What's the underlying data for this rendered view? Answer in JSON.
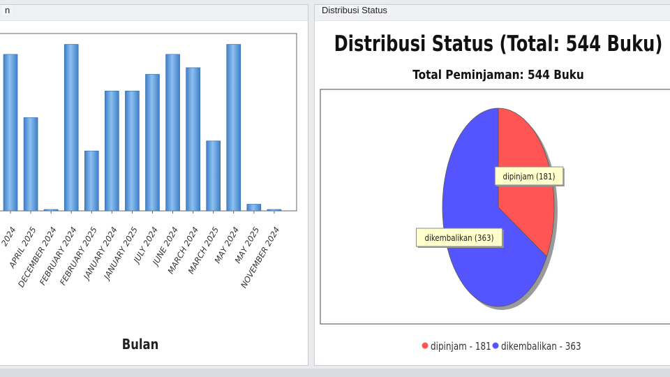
{
  "left_panel": {
    "title": "n"
  },
  "right_panel": {
    "title": "Distribusi Status"
  },
  "chart_data": [
    {
      "type": "bar",
      "title": "",
      "xlabel": "Bulan",
      "ylabel": "",
      "categories": [
        "2024",
        "APRIL 2025",
        "DECEMBER 2024",
        "FEBRUARY 2024",
        "FEBRUARY 2025",
        "JANUARY 2024",
        "JANUARY 2025",
        "JULY 2024",
        "JUNE 2024",
        "MARCH 2024",
        "MARCH 2025",
        "MAY 2024",
        "MAY 2025",
        "NOVEMBER 2024"
      ],
      "values": [
        47,
        28,
        0.3,
        50,
        18,
        36,
        36,
        41,
        47,
        43,
        21,
        50,
        2,
        0.4
      ],
      "ylim": [
        0,
        52
      ],
      "bar_color": "#5b9bdb",
      "grid": false
    },
    {
      "type": "pie",
      "title": "Distribusi Status (Total: 544 Buku)",
      "subtitle": "Total Peminjaman: 544 Buku",
      "slices": [
        {
          "label": "dipinjam",
          "value": 181,
          "color": "#ff5555",
          "callout": "dipinjam (181)",
          "legend": "dipinjam - 181"
        },
        {
          "label": "dikembalikan",
          "value": 363,
          "color": "#5555ff",
          "callout": "dikembalikan (363)",
          "legend": "dikembalikan - 363"
        }
      ],
      "legend_position": "bottom"
    }
  ]
}
